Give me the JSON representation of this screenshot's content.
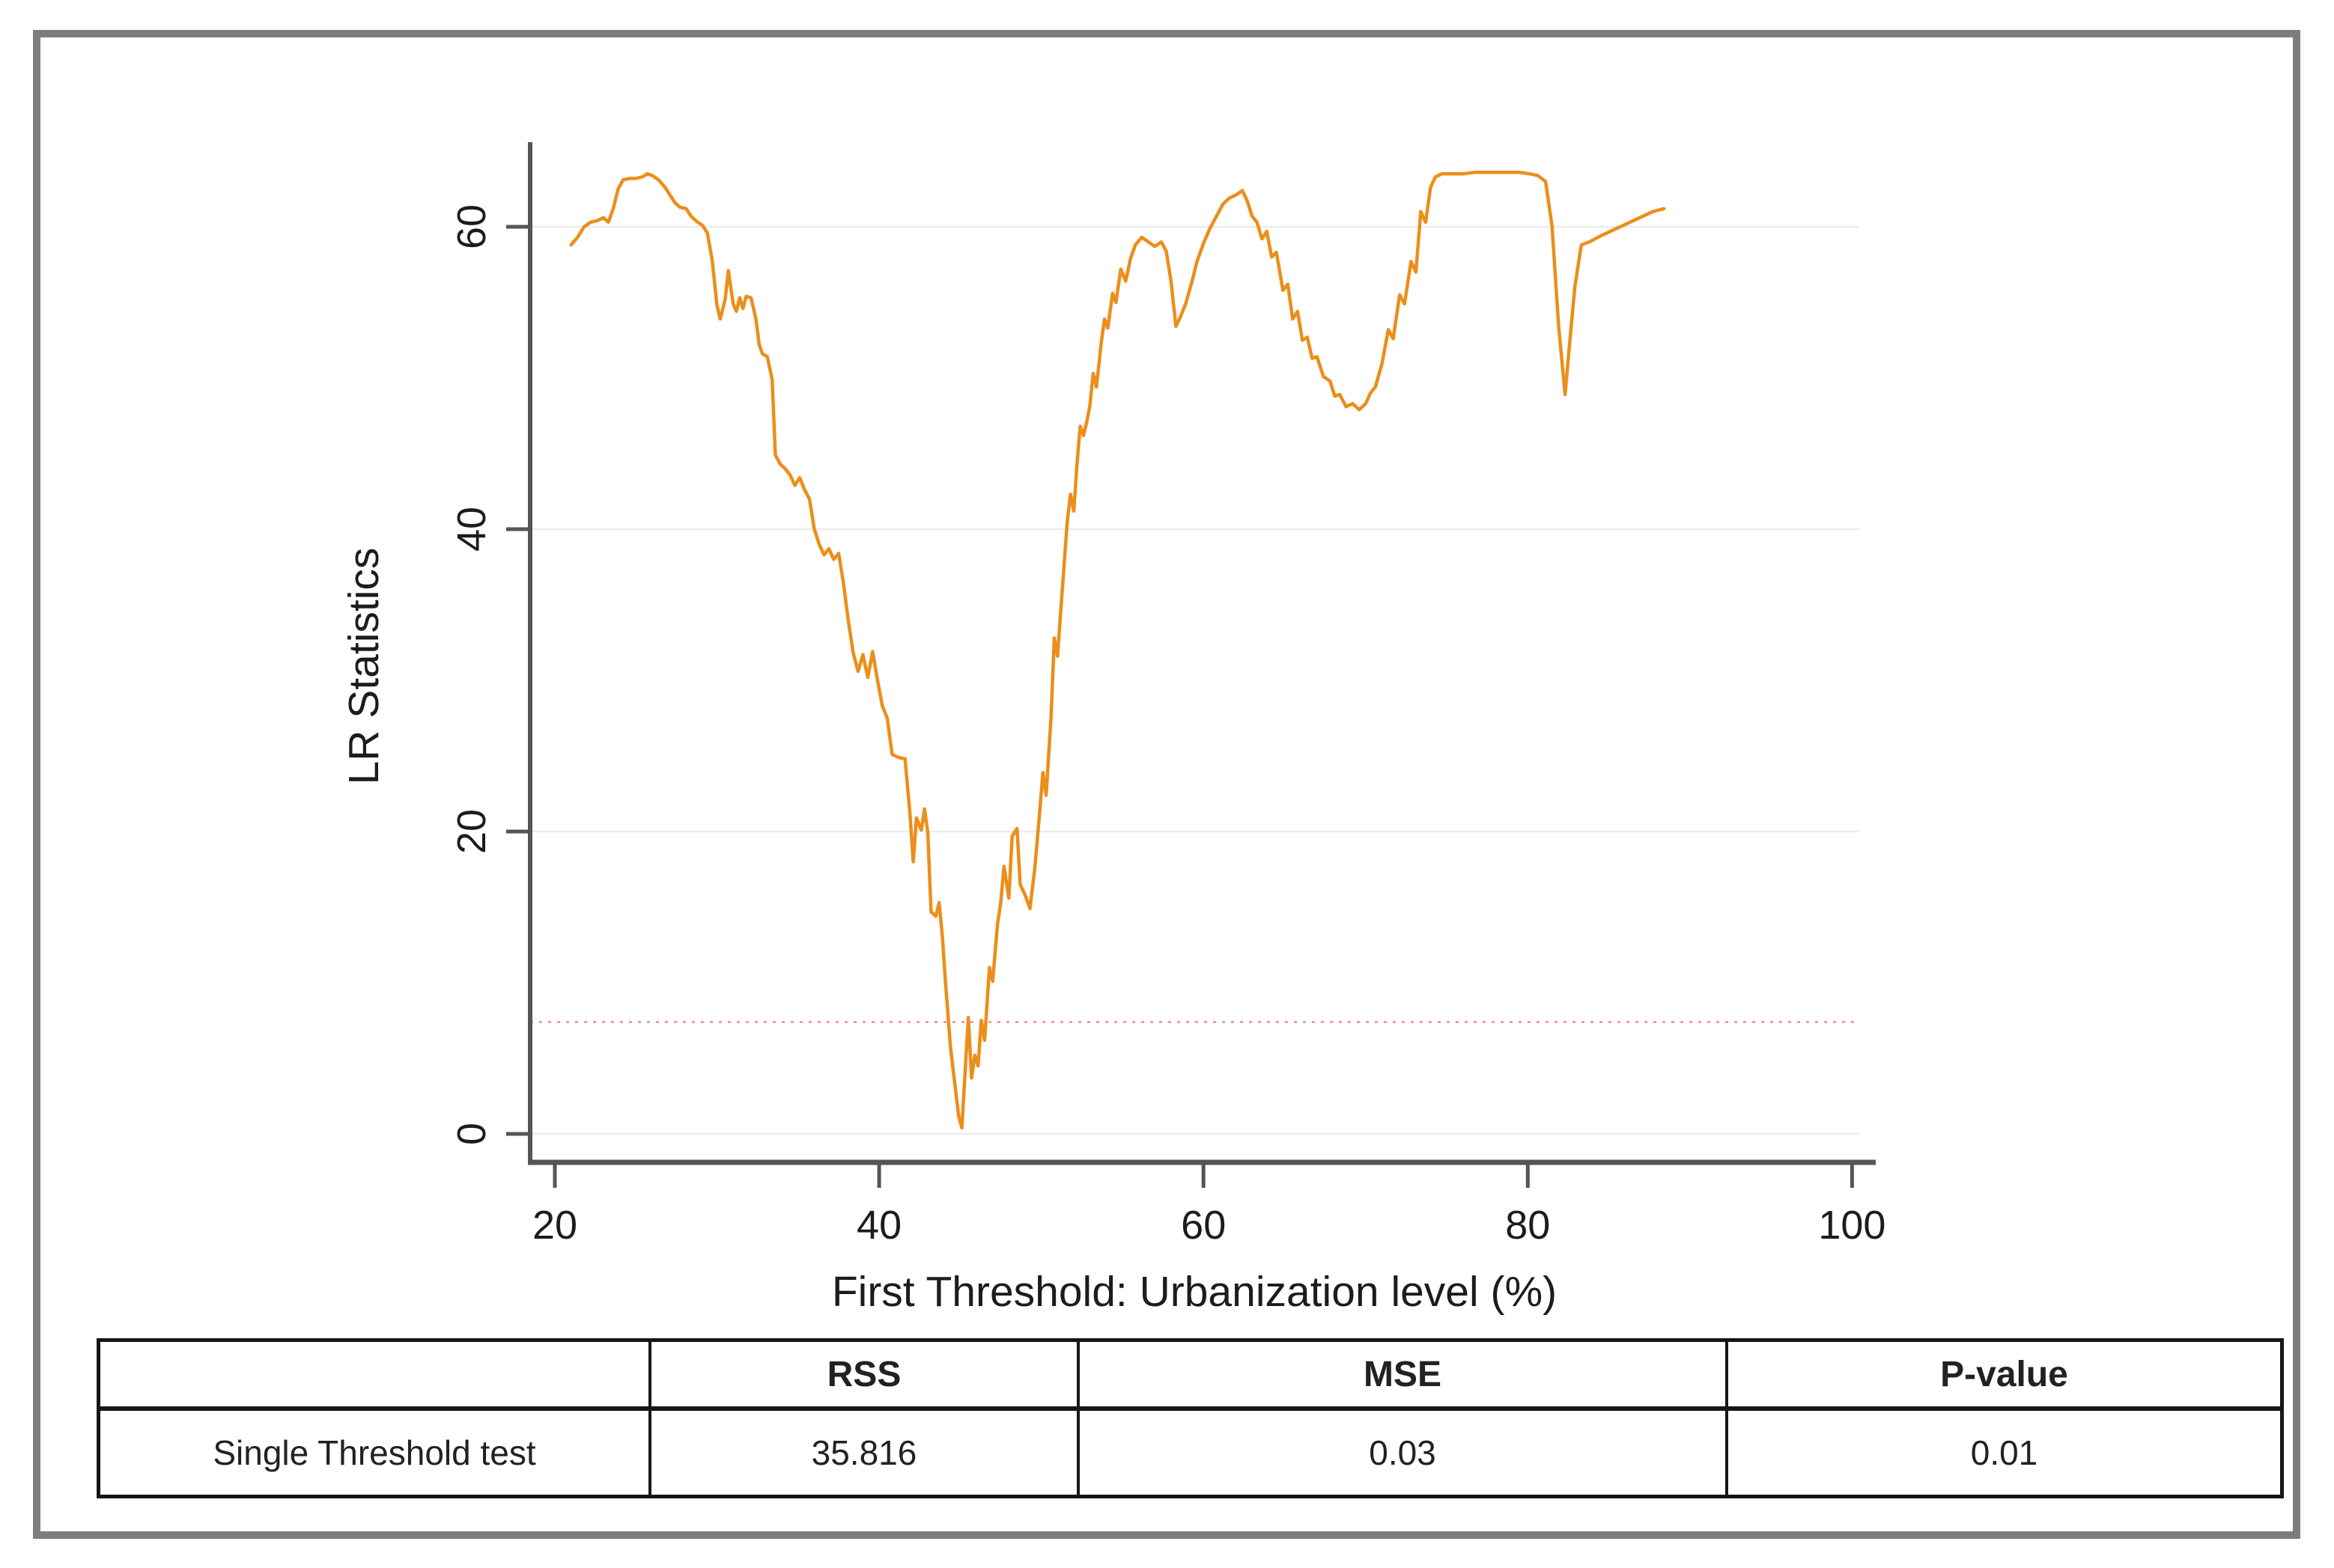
{
  "chart_data": {
    "type": "line",
    "title": "",
    "xlabel": "First Threshold: Urbanization level (%)",
    "ylabel": "LR Statistics",
    "x_ticks": [
      20,
      40,
      60,
      80,
      100
    ],
    "y_ticks": [
      0,
      20,
      40,
      60
    ],
    "xlim": [
      18.5,
      101
    ],
    "ylim": [
      0,
      66
    ],
    "grid": "horizontal-light",
    "legend": "none",
    "line_color": "#EC8E1B",
    "grid_color": "#ECECEC",
    "axis_color": "#555555",
    "critical_line": {
      "value": 7.4,
      "color": "#F19F9F",
      "style": "dotted"
    },
    "series": [
      {
        "name": "LR statistic",
        "points": [
          [
            21.0,
            58.8
          ],
          [
            21.4,
            59.3
          ],
          [
            21.8,
            60.0
          ],
          [
            22.2,
            60.3
          ],
          [
            22.6,
            60.4
          ],
          [
            23.0,
            60.6
          ],
          [
            23.3,
            60.3
          ],
          [
            23.6,
            61.2
          ],
          [
            23.9,
            62.5
          ],
          [
            24.2,
            63.1
          ],
          [
            24.6,
            63.2
          ],
          [
            25.0,
            63.2
          ],
          [
            25.4,
            63.3
          ],
          [
            25.7,
            63.5
          ],
          [
            26.0,
            63.4
          ],
          [
            26.4,
            63.1
          ],
          [
            26.8,
            62.6
          ],
          [
            27.1,
            62.1
          ],
          [
            27.4,
            61.6
          ],
          [
            27.7,
            61.3
          ],
          [
            28.1,
            61.2
          ],
          [
            28.4,
            60.7
          ],
          [
            28.8,
            60.3
          ],
          [
            29.1,
            60.1
          ],
          [
            29.4,
            59.6
          ],
          [
            29.7,
            57.8
          ],
          [
            30.0,
            54.8
          ],
          [
            30.2,
            53.9
          ],
          [
            30.5,
            55.2
          ],
          [
            30.7,
            57.1
          ],
          [
            31.0,
            54.9
          ],
          [
            31.2,
            54.4
          ],
          [
            31.4,
            55.3
          ],
          [
            31.6,
            54.6
          ],
          [
            31.8,
            55.4
          ],
          [
            32.1,
            55.3
          ],
          [
            32.4,
            53.9
          ],
          [
            32.6,
            52.2
          ],
          [
            32.8,
            51.6
          ],
          [
            33.1,
            51.4
          ],
          [
            33.4,
            49.9
          ],
          [
            33.6,
            44.9
          ],
          [
            33.9,
            44.3
          ],
          [
            34.2,
            44.0
          ],
          [
            34.5,
            43.6
          ],
          [
            34.8,
            42.9
          ],
          [
            35.1,
            43.4
          ],
          [
            35.4,
            42.6
          ],
          [
            35.7,
            42.0
          ],
          [
            36.0,
            40.0
          ],
          [
            36.3,
            39.0
          ],
          [
            36.6,
            38.3
          ],
          [
            36.9,
            38.7
          ],
          [
            37.2,
            38.0
          ],
          [
            37.5,
            38.4
          ],
          [
            37.8,
            36.4
          ],
          [
            38.1,
            33.9
          ],
          [
            38.4,
            31.8
          ],
          [
            38.7,
            30.6
          ],
          [
            39.0,
            31.7
          ],
          [
            39.3,
            30.2
          ],
          [
            39.6,
            31.9
          ],
          [
            39.9,
            30.0
          ],
          [
            40.2,
            28.3
          ],
          [
            40.5,
            27.5
          ],
          [
            40.8,
            25.1
          ],
          [
            41.2,
            24.9
          ],
          [
            41.6,
            24.8
          ],
          [
            41.9,
            21.2
          ],
          [
            42.1,
            18.0
          ],
          [
            42.3,
            20.9
          ],
          [
            42.6,
            20.1
          ],
          [
            42.8,
            21.5
          ],
          [
            43.0,
            19.9
          ],
          [
            43.2,
            14.7
          ],
          [
            43.5,
            14.4
          ],
          [
            43.7,
            15.3
          ],
          [
            43.9,
            13.0
          ],
          [
            44.1,
            9.9
          ],
          [
            44.4,
            5.7
          ],
          [
            44.7,
            3.0
          ],
          [
            44.9,
            1.2
          ],
          [
            45.1,
            0.4
          ],
          [
            45.3,
            4.1
          ],
          [
            45.5,
            7.7
          ],
          [
            45.7,
            3.7
          ],
          [
            45.9,
            5.2
          ],
          [
            46.1,
            4.5
          ],
          [
            46.3,
            7.5
          ],
          [
            46.5,
            6.2
          ],
          [
            46.8,
            11.0
          ],
          [
            47.0,
            10.1
          ],
          [
            47.3,
            13.9
          ],
          [
            47.5,
            15.3
          ],
          [
            47.7,
            17.7
          ],
          [
            48.0,
            15.6
          ],
          [
            48.2,
            19.7
          ],
          [
            48.5,
            20.2
          ],
          [
            48.7,
            16.5
          ],
          [
            49.0,
            15.8
          ],
          [
            49.3,
            14.9
          ],
          [
            49.6,
            17.6
          ],
          [
            49.9,
            21.3
          ],
          [
            50.1,
            23.9
          ],
          [
            50.3,
            22.4
          ],
          [
            50.6,
            27.5
          ],
          [
            50.8,
            32.8
          ],
          [
            51.0,
            31.6
          ],
          [
            51.3,
            36.1
          ],
          [
            51.6,
            40.5
          ],
          [
            51.8,
            42.3
          ],
          [
            52.0,
            41.2
          ],
          [
            52.2,
            44.3
          ],
          [
            52.4,
            46.8
          ],
          [
            52.6,
            46.2
          ],
          [
            52.8,
            47.1
          ],
          [
            53.0,
            48.2
          ],
          [
            53.2,
            50.3
          ],
          [
            53.4,
            49.4
          ],
          [
            53.7,
            52.4
          ],
          [
            53.9,
            53.9
          ],
          [
            54.1,
            53.3
          ],
          [
            54.4,
            55.6
          ],
          [
            54.6,
            55.0
          ],
          [
            54.9,
            57.2
          ],
          [
            55.2,
            56.4
          ],
          [
            55.5,
            57.9
          ],
          [
            55.8,
            58.8
          ],
          [
            56.2,
            59.3
          ],
          [
            56.6,
            59.0
          ],
          [
            57.0,
            58.7
          ],
          [
            57.4,
            59.0
          ],
          [
            57.7,
            58.4
          ],
          [
            58.0,
            56.4
          ],
          [
            58.3,
            53.4
          ],
          [
            58.6,
            54.1
          ],
          [
            58.9,
            54.9
          ],
          [
            59.3,
            56.4
          ],
          [
            59.6,
            57.7
          ],
          [
            60.0,
            58.9
          ],
          [
            60.4,
            59.9
          ],
          [
            60.8,
            60.7
          ],
          [
            61.2,
            61.5
          ],
          [
            61.6,
            61.9
          ],
          [
            62.0,
            62.1
          ],
          [
            62.4,
            62.4
          ],
          [
            62.7,
            61.7
          ],
          [
            63.0,
            60.7
          ],
          [
            63.3,
            60.3
          ],
          [
            63.6,
            59.2
          ],
          [
            63.9,
            59.7
          ],
          [
            64.2,
            58.0
          ],
          [
            64.5,
            58.3
          ],
          [
            64.9,
            55.8
          ],
          [
            65.2,
            56.2
          ],
          [
            65.5,
            53.9
          ],
          [
            65.8,
            54.4
          ],
          [
            66.1,
            52.5
          ],
          [
            66.4,
            52.7
          ],
          [
            66.7,
            51.3
          ],
          [
            67.0,
            51.4
          ],
          [
            67.4,
            50.1
          ],
          [
            67.8,
            49.8
          ],
          [
            68.1,
            48.8
          ],
          [
            68.4,
            48.9
          ],
          [
            68.8,
            48.1
          ],
          [
            69.2,
            48.3
          ],
          [
            69.6,
            47.9
          ],
          [
            70.0,
            48.3
          ],
          [
            70.3,
            49.0
          ],
          [
            70.6,
            49.4
          ],
          [
            71.0,
            50.9
          ],
          [
            71.4,
            53.2
          ],
          [
            71.7,
            52.6
          ],
          [
            72.1,
            55.5
          ],
          [
            72.4,
            54.9
          ],
          [
            72.8,
            57.7
          ],
          [
            73.1,
            57.0
          ],
          [
            73.4,
            61.0
          ],
          [
            73.7,
            60.3
          ],
          [
            74.0,
            62.6
          ],
          [
            74.3,
            63.3
          ],
          [
            74.7,
            63.5
          ],
          [
            75.3,
            63.5
          ],
          [
            76.0,
            63.5
          ],
          [
            76.7,
            63.6
          ],
          [
            77.4,
            63.6
          ],
          [
            78.1,
            63.6
          ],
          [
            78.8,
            63.6
          ],
          [
            79.5,
            63.6
          ],
          [
            80.1,
            63.5
          ],
          [
            80.6,
            63.4
          ],
          [
            81.1,
            63.0
          ],
          [
            81.5,
            60.0
          ],
          [
            81.9,
            53.5
          ],
          [
            82.3,
            48.9
          ],
          [
            82.6,
            52.5
          ],
          [
            82.9,
            56.0
          ],
          [
            83.3,
            58.8
          ],
          [
            83.8,
            59.0
          ],
          [
            84.5,
            59.4
          ],
          [
            85.3,
            59.8
          ],
          [
            86.1,
            60.2
          ],
          [
            86.9,
            60.6
          ],
          [
            87.7,
            61.0
          ],
          [
            88.4,
            61.2
          ]
        ]
      }
    ]
  },
  "table": {
    "headers": [
      "",
      "RSS",
      "MSE",
      "P-value"
    ],
    "rows": [
      {
        "label": "Single Threshold test",
        "values": [
          "35.816",
          "0.03",
          "0.01"
        ]
      }
    ]
  },
  "frame": {
    "border_color": "#7d7d7d"
  }
}
